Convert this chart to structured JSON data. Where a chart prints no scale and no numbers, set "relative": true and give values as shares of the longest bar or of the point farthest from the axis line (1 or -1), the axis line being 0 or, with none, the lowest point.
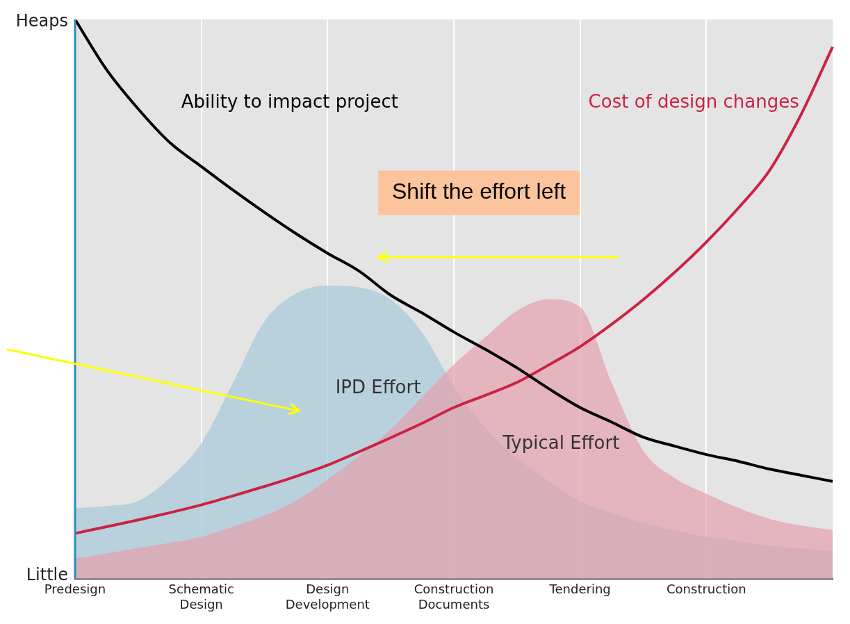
{
  "chart_data": {
    "type": "line",
    "relative": true,
    "categories": [
      "Predesign",
      null,
      null,
      null,
      "Schematic Design",
      null,
      null,
      null,
      "Design Development",
      null,
      null,
      null,
      "Construction Documents",
      null,
      null,
      null,
      "Tendering",
      null,
      null,
      null,
      "Construction",
      null,
      null,
      null,
      null
    ],
    "grid": "x",
    "marker": "none",
    "series": [
      {
        "name": "Typical Effort",
        "type": "area",
        "color": "#e3a2ae",
        "values": [
          0.036,
          0.045,
          0.055,
          0.064,
          0.075,
          0.093,
          0.113,
          0.14,
          0.177,
          0.22,
          0.267,
          0.325,
          0.383,
          0.432,
          0.479,
          0.5,
          0.486,
          0.35,
          0.229,
          0.18,
          0.152,
          0.127,
          0.107,
          0.095,
          0.087
        ]
      },
      {
        "name": "IPD Effort",
        "type": "area",
        "color": "#a6c9d8",
        "values": [
          0.126,
          0.13,
          0.139,
          0.18,
          0.242,
          0.35,
          0.46,
          0.51,
          0.524,
          0.521,
          0.499,
          0.44,
          0.344,
          0.27,
          0.216,
          0.175,
          0.139,
          0.118,
          0.1,
          0.086,
          0.075,
          0.067,
          0.059,
          0.054,
          0.049
        ]
      },
      {
        "name": "Ability to impact project",
        "type": "line",
        "color": "#000000",
        "values": [
          1,
          0.91,
          0.84,
          0.78,
          0.737,
          0.695,
          0.655,
          0.617,
          0.582,
          0.55,
          0.507,
          0.475,
          0.441,
          0.41,
          0.377,
          0.34,
          0.306,
          0.28,
          0.253,
          0.237,
          0.222,
          0.21,
          0.196,
          0.185,
          0.174
        ]
      },
      {
        "name": "Cost of design changes",
        "type": "line",
        "color": "#cc2244",
        "values": [
          0.081,
          0.093,
          0.105,
          0.118,
          0.132,
          0.148,
          0.165,
          0.183,
          0.203,
          0.227,
          0.252,
          0.278,
          0.306,
          0.328,
          0.351,
          0.382,
          0.415,
          0.455,
          0.499,
          0.548,
          0.602,
          0.662,
          0.73,
          0.83,
          0.951
        ]
      }
    ],
    "annotations": [
      "Heaps",
      "Little",
      "Shift the effort left"
    ]
  }
}
